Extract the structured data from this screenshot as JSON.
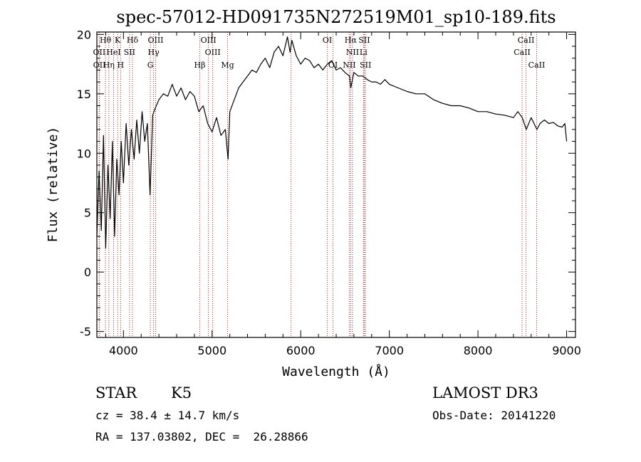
{
  "chart_data": {
    "type": "line",
    "title": "spec-57012-HD091735N272519M01_sp10-189.fits",
    "xlabel": "Wavelength (Å)",
    "ylabel": "Flux (relative)",
    "xlim": [
      3700,
      9100
    ],
    "ylim": [
      -5.5,
      20.2
    ],
    "xticks": [
      4000,
      5000,
      6000,
      7000,
      8000,
      9000
    ],
    "yticks": [
      -5,
      0,
      5,
      10,
      15,
      20
    ],
    "series": [
      {
        "name": "flux",
        "color": "#000000",
        "x": [
          3700,
          3725,
          3750,
          3775,
          3800,
          3825,
          3850,
          3875,
          3900,
          3925,
          3950,
          3975,
          4000,
          4030,
          4060,
          4090,
          4120,
          4150,
          4180,
          4210,
          4240,
          4270,
          4300,
          4330,
          4360,
          4400,
          4450,
          4500,
          4550,
          4600,
          4650,
          4700,
          4750,
          4800,
          4850,
          4900,
          4950,
          5000,
          5050,
          5100,
          5150,
          5180,
          5200,
          5250,
          5300,
          5350,
          5400,
          5450,
          5500,
          5550,
          5600,
          5650,
          5700,
          5750,
          5800,
          5850,
          5880,
          5900,
          5950,
          6000,
          6050,
          6100,
          6150,
          6200,
          6250,
          6300,
          6350,
          6400,
          6450,
          6500,
          6550,
          6565,
          6600,
          6650,
          6700,
          6750,
          6800,
          6850,
          6900,
          6950,
          7000,
          7100,
          7200,
          7300,
          7400,
          7500,
          7600,
          7700,
          7800,
          7900,
          8000,
          8100,
          8200,
          8300,
          8400,
          8450,
          8500,
          8545,
          8600,
          8665,
          8700,
          8750,
          8800,
          8850,
          8900,
          8950,
          8980,
          9000
        ],
        "values": [
          3.0,
          8.5,
          3.5,
          11.5,
          2.0,
          9.0,
          4.5,
          11.0,
          3.0,
          9.5,
          6.5,
          11.0,
          7.5,
          12.5,
          9.0,
          12.0,
          9.5,
          12.8,
          10.0,
          13.5,
          11.0,
          12.5,
          6.5,
          13.2,
          13.8,
          14.5,
          15.0,
          14.8,
          15.8,
          14.8,
          15.5,
          14.5,
          15.2,
          14.8,
          13.5,
          14.0,
          12.5,
          11.8,
          13.0,
          11.5,
          12.0,
          9.5,
          13.5,
          14.5,
          15.5,
          16.0,
          16.5,
          17.0,
          16.8,
          17.5,
          18.0,
          17.2,
          18.5,
          19.0,
          18.2,
          19.8,
          18.5,
          19.5,
          18.2,
          17.5,
          18.0,
          17.8,
          17.2,
          17.5,
          17.0,
          17.5,
          17.8,
          17.0,
          17.2,
          16.8,
          16.5,
          15.5,
          16.8,
          16.5,
          16.5,
          16.2,
          16.0,
          16.0,
          15.8,
          16.2,
          15.8,
          15.5,
          15.2,
          15.0,
          15.0,
          14.5,
          14.2,
          14.0,
          14.0,
          13.8,
          13.5,
          13.5,
          13.3,
          13.2,
          13.0,
          13.5,
          13.0,
          12.0,
          13.0,
          12.0,
          12.5,
          12.8,
          12.5,
          12.6,
          12.3,
          12.2,
          12.5,
          11.0
        ]
      }
    ],
    "spectral_lines": [
      {
        "label": "Hθ",
        "x": 3797,
        "row": 0
      },
      {
        "label": "K",
        "x": 3934,
        "row": 0
      },
      {
        "label": "Hδ",
        "x": 4102,
        "row": 0
      },
      {
        "label": "OIII",
        "x": 4363,
        "row": 0
      },
      {
        "label": "OIII",
        "x": 4959,
        "row": 0
      },
      {
        "label": "OI",
        "x": 6300,
        "row": 0
      },
      {
        "label": "Hα",
        "x": 6563,
        "row": 0
      },
      {
        "label": "SII",
        "x": 6717,
        "row": 0
      },
      {
        "label": "CaII",
        "x": 8542,
        "row": 0
      },
      {
        "label": "OII",
        "x": 3727,
        "row": 1
      },
      {
        "label": "HeI",
        "x": 3889,
        "row": 1
      },
      {
        "label": "SII",
        "x": 4069,
        "row": 1
      },
      {
        "label": "Hγ",
        "x": 4340,
        "row": 1
      },
      {
        "label": "OIII",
        "x": 5007,
        "row": 1
      },
      {
        "label": "NII",
        "x": 6584,
        "row": 1
      },
      {
        "label": "Li",
        "x": 6708,
        "row": 1
      },
      {
        "label": "CaII",
        "x": 8498,
        "row": 1
      },
      {
        "label": "OII",
        "x": 3729,
        "row": 2
      },
      {
        "label": "Hη",
        "x": 3835,
        "row": 2
      },
      {
        "label": "H",
        "x": 3968,
        "row": 2
      },
      {
        "label": "G",
        "x": 4304,
        "row": 2
      },
      {
        "label": "Hβ",
        "x": 4861,
        "row": 2
      },
      {
        "label": "Mg",
        "x": 5175,
        "row": 2
      },
      {
        "label": "OI",
        "x": 6364,
        "row": 2
      },
      {
        "label": "NII",
        "x": 6548,
        "row": 2
      },
      {
        "label": "SII",
        "x": 6731,
        "row": 2
      },
      {
        "label": "CaII",
        "x": 8662,
        "row": 2
      }
    ],
    "marker_lines_extra": [
      3889,
      4861,
      5175,
      5890,
      6300,
      6364,
      6548,
      6563,
      6584,
      6717,
      6731,
      8498,
      8542,
      8662
    ],
    "line_color": "#b22222"
  },
  "info": {
    "object_type": "STAR",
    "subclass": "K5",
    "survey": "LAMOST DR3",
    "cz": "cz = 38.4 ± 14.7 km/s",
    "obs_date": "Obs-Date: 20141220",
    "radec": "RA = 137.03802, DEC =  26.28866"
  }
}
